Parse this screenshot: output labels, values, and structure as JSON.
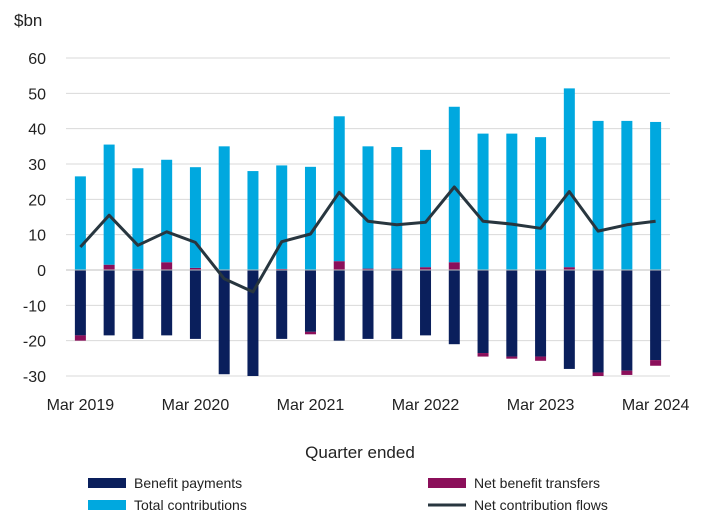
{
  "chart_data": {
    "type": "bar",
    "ylabel": "$bn",
    "xlabel": "Quarter ended",
    "ylim": [
      -30,
      60
    ],
    "yticks": [
      -30,
      -20,
      -10,
      0,
      10,
      20,
      30,
      40,
      50,
      60
    ],
    "grid": "horizontal",
    "legend": "bottom",
    "tick_labels": [
      {
        "index": 0,
        "label": "Mar 2019"
      },
      {
        "index": 4,
        "label": "Mar 2020"
      },
      {
        "index": 8,
        "label": "Mar 2021"
      },
      {
        "index": 12,
        "label": "Mar 2022"
      },
      {
        "index": 16,
        "label": "Mar 2023"
      },
      {
        "index": 20,
        "label": "Mar 2024"
      }
    ],
    "series": [
      {
        "name": "Benefit payments",
        "kind": "bar",
        "color": "#0a1f5c",
        "values": [
          -18.5,
          -18.5,
          -19.5,
          -18.5,
          -19.5,
          -29.5,
          -30,
          -19.5,
          -17.5,
          -20,
          -19.5,
          -19.5,
          -18.5,
          -21,
          -23.5,
          -24.5,
          -24.5,
          -28,
          -29,
          -28.5,
          -25.5
        ]
      },
      {
        "name": "Net benefit transfers",
        "kind": "bar",
        "color": "#8b0f5a",
        "values": [
          -1.5,
          1.5,
          0.3,
          2.2,
          0.6,
          0,
          0,
          0.3,
          -0.7,
          2.5,
          0.4,
          0.4,
          0.8,
          2.2,
          -1,
          -0.6,
          -1.2,
          0.8,
          -1.8,
          -1.2,
          -1.6
        ]
      },
      {
        "name": "Total contributions",
        "kind": "bar",
        "color": "#00a8df",
        "values": [
          26.5,
          34,
          28.5,
          29,
          28.5,
          35,
          28,
          29.3,
          29.2,
          41,
          34.6,
          34.4,
          33.2,
          44,
          38.6,
          38.6,
          37.6,
          50.6,
          42.2,
          42.2,
          41.9
        ]
      },
      {
        "name": "Net contribution flows",
        "kind": "line",
        "color": "#28363f",
        "values": [
          6.5,
          15.5,
          7,
          10.8,
          7.8,
          -2.5,
          -6.2,
          8,
          10.2,
          22,
          13.8,
          12.8,
          13.5,
          23.5,
          13.8,
          13,
          11.8,
          22.2,
          11,
          12.8,
          13.8
        ]
      }
    ]
  }
}
